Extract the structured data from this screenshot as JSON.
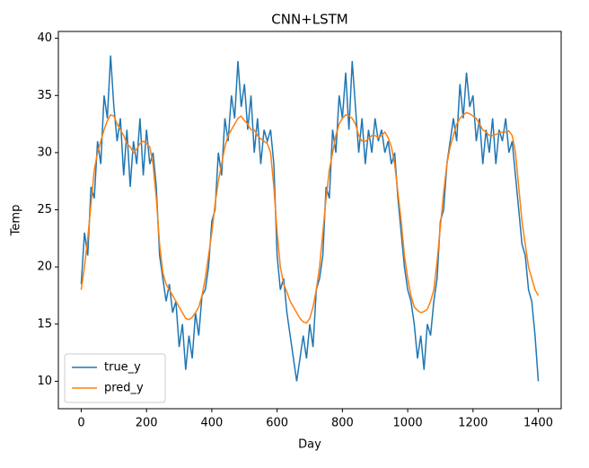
{
  "chart_data": {
    "type": "line",
    "title": "CNN+LSTM",
    "x_label": "Day",
    "y_label": "Temp",
    "x": [
      0,
      10,
      20,
      30,
      40,
      50,
      60,
      70,
      80,
      90,
      100,
      110,
      120,
      130,
      140,
      150,
      160,
      170,
      180,
      190,
      200,
      210,
      220,
      230,
      240,
      250,
      260,
      270,
      280,
      290,
      300,
      310,
      320,
      330,
      340,
      350,
      360,
      370,
      380,
      390,
      400,
      410,
      420,
      430,
      440,
      450,
      460,
      470,
      480,
      490,
      500,
      510,
      520,
      530,
      540,
      550,
      560,
      570,
      580,
      590,
      600,
      610,
      620,
      630,
      640,
      650,
      660,
      670,
      680,
      690,
      700,
      710,
      720,
      730,
      740,
      750,
      760,
      770,
      780,
      790,
      800,
      810,
      820,
      830,
      840,
      850,
      860,
      870,
      880,
      890,
      900,
      910,
      920,
      930,
      940,
      950,
      960,
      970,
      980,
      990,
      1000,
      1010,
      1020,
      1030,
      1040,
      1050,
      1060,
      1070,
      1080,
      1090,
      1100,
      1110,
      1120,
      1130,
      1140,
      1150,
      1160,
      1170,
      1180,
      1190,
      1200,
      1210,
      1220,
      1230,
      1240,
      1250,
      1260,
      1270,
      1280,
      1290,
      1300,
      1310,
      1320,
      1330,
      1340,
      1350,
      1360,
      1370,
      1380,
      1390,
      1400
    ],
    "series": [
      {
        "name": "true_y",
        "color": "#1f77b4",
        "values": [
          18.5,
          23,
          21,
          27,
          26,
          31,
          29,
          35,
          33,
          38.5,
          34,
          31,
          33,
          28,
          32,
          27,
          31,
          29,
          33,
          28,
          32,
          29,
          30,
          27,
          21,
          19,
          17,
          18.5,
          16,
          17,
          13,
          15,
          11,
          14,
          12,
          16,
          14,
          17.5,
          18,
          20,
          24,
          25,
          30,
          28,
          33,
          31,
          35,
          33,
          38,
          34,
          36,
          32,
          35,
          30,
          33,
          29,
          32,
          31,
          32,
          29,
          21,
          18,
          19,
          16,
          14,
          12,
          10,
          12,
          14,
          12,
          15,
          13,
          18,
          19,
          21,
          27,
          26,
          32,
          30,
          35,
          33,
          37,
          32,
          38,
          34,
          30,
          33,
          29,
          32,
          30,
          33,
          31,
          32,
          30,
          31,
          29,
          30,
          26,
          23,
          20,
          18,
          17,
          15,
          12,
          14,
          11,
          15,
          14,
          17,
          19,
          24,
          25,
          29,
          31,
          33,
          31,
          36,
          33,
          37,
          34,
          35,
          31,
          33,
          29,
          32,
          30,
          33,
          29,
          32,
          31,
          33,
          30,
          31,
          28,
          25,
          22,
          21,
          18,
          17,
          14,
          10
        ]
      },
      {
        "name": "pred_y",
        "color": "#ff7f0e",
        "values": [
          18,
          20,
          22.5,
          25.5,
          28.5,
          30,
          31,
          32,
          32.8,
          33.3,
          33.2,
          32.5,
          32,
          31.5,
          30.8,
          30.5,
          30,
          30.3,
          30.8,
          31,
          30.8,
          30.5,
          29,
          26,
          22,
          19.5,
          18.5,
          18,
          17.5,
          17,
          16.5,
          16,
          15.5,
          15.4,
          15.6,
          16,
          16.5,
          17.5,
          19,
          21,
          23,
          25.5,
          27.5,
          29,
          30.5,
          31.5,
          32,
          32.5,
          33,
          33.2,
          32.8,
          32.5,
          32,
          32,
          31.5,
          31.2,
          31,
          30.8,
          30,
          27,
          23,
          20,
          18.5,
          17.8,
          17,
          16.5,
          16,
          15.5,
          15.2,
          15.1,
          15.5,
          16.5,
          18,
          20,
          23,
          26,
          28.5,
          30,
          31.5,
          32.5,
          33,
          33.3,
          33.2,
          33,
          32.5,
          31.5,
          31,
          31,
          31.2,
          31.5,
          31.5,
          31.3,
          31.5,
          31.8,
          31.3,
          30.5,
          29,
          26.5,
          24,
          21,
          19,
          17.5,
          16.5,
          16.2,
          16,
          16.1,
          16.3,
          17,
          18,
          20.5,
          23.5,
          26.5,
          29,
          30.5,
          31.5,
          32.5,
          33,
          33.3,
          33.5,
          33.4,
          33.2,
          33,
          32.5,
          32,
          31.8,
          31.5,
          31.5,
          31.6,
          31.7,
          31.8,
          31.8,
          31.9,
          31.5,
          30,
          27,
          24,
          22,
          20,
          19,
          18,
          17.5
        ]
      }
    ],
    "xlim": [
      -70,
      1470
    ],
    "ylim": [
      7.6,
      40.6
    ],
    "xticks": [
      0,
      200,
      400,
      600,
      800,
      1000,
      1200,
      1400
    ],
    "yticks": [
      10,
      15,
      20,
      25,
      30,
      35,
      40
    ],
    "legend": "lower left"
  }
}
